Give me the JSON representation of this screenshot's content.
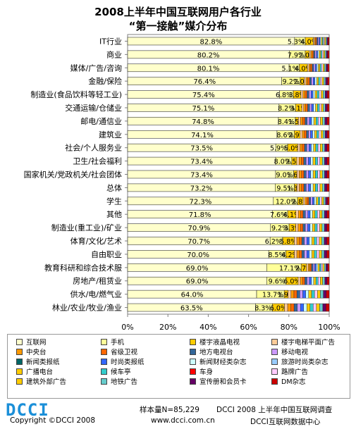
{
  "title_line1": "2008上半年中国互联网用户各行业",
  "title_line2": "“第一接触”媒介分布",
  "chart_data": {
    "type": "bar",
    "orientation": "horizontal",
    "stacked": true,
    "title": "2008上半年中国互联网用户各行业 “第一接触”媒介分布",
    "xlim": [
      0,
      100
    ],
    "x_ticks": [
      "0%",
      "20%",
      "40%",
      "60%",
      "80%",
      "100%"
    ],
    "grid": false,
    "legend_position": "bottom",
    "categories": [
      "IT行业",
      "商业",
      "媒体/广告/咨询",
      "金融/保险",
      "制造业(食品饮料等轻工业)",
      "交通运输/仓储业",
      "邮电/通信业",
      "建筑业",
      "社会/个人服务业",
      "卫生/社会福利",
      "国家机关/党政机关/社会团体",
      "总体",
      "学生",
      "其他",
      "制造业(重工业)/矿业",
      "体育/文化/艺术",
      "自由职业",
      "教育科研和综合技术服",
      "房地产/租赁业",
      "供水/电/燃气业",
      "林业/农业/牧业/渔业"
    ],
    "internet_share": [
      82.8,
      80.2,
      80.1,
      76.4,
      75.4,
      75.1,
      74.8,
      74.1,
      73.5,
      73.4,
      73.4,
      73.2,
      72.3,
      71.8,
      70.9,
      70.7,
      70.0,
      69.0,
      69.0,
      64.0,
      63.5
    ],
    "internet_labels": [
      "82.8%",
      "80.2%",
      "80.1%",
      "76.4%",
      "75.4%",
      "75.1%",
      "74.8%",
      "74.1%",
      "73.5%",
      "73.4%",
      "73.4%",
      "73.2%",
      "72.3%",
      "71.8%",
      "70.9%",
      "70.7%",
      "70.0%",
      "69.0%",
      "69.0%",
      "64.0%",
      "63.5%"
    ],
    "mobile_share": [
      5.3,
      7.9,
      5.1,
      9.2,
      6.8,
      8.2,
      8.4,
      8.6,
      5.9,
      8.0,
      9.0,
      9.5,
      12.0,
      7.6,
      9.2,
      6.2,
      8.5,
      17.1,
      9.6,
      13.7,
      8.3
    ],
    "mobile_labels": [
      "5.3%",
      "7.9%",
      "5.1%",
      "9.2%",
      "6.8%",
      "8.2%",
      "8.4%",
      "8.6%",
      "5.9%",
      "8.0%",
      "9.0%",
      "9.5%",
      "12.0%",
      "7.6%",
      "9.2%",
      "6.2%",
      "8.5%",
      "17.1%",
      "9.6%",
      "13.7%",
      "8.3%"
    ],
    "third_share": [
      4.0,
      2.0,
      4.0,
      2.0,
      3.8,
      3.1,
      1.5,
      2.9,
      5.0,
      2.5,
      1.6,
      1.3,
      2.8,
      4.1,
      3.3,
      5.8,
      4.2,
      2.7,
      6.0,
      1.9,
      6.0
    ],
    "third_labels": [
      "4.0%",
      "2.0%",
      "4.0%",
      "2.0%",
      "3.8%",
      "3.1%",
      "1.5%",
      "2.9%",
      "5.0%",
      "2.5%",
      "1.6%",
      "1.3%",
      "2.8%",
      "4.1%",
      "3.3%",
      "5.8%",
      "4.2%",
      "2.7%",
      "6.0%",
      "1.9%",
      "6.0%"
    ],
    "series": [
      {
        "name": "互联网",
        "color": "#ffffcc"
      },
      {
        "name": "手机",
        "color": "#ffff99"
      },
      {
        "name": "楼宇液晶电视",
        "color": "#ffcc00"
      },
      {
        "name": "楼宇电梯平面广告",
        "color": "#ffcc99"
      },
      {
        "name": "中央台",
        "color": "#ff9900"
      },
      {
        "name": "省级卫视",
        "color": "#ff6600"
      },
      {
        "name": "地方电视台",
        "color": "#336699"
      },
      {
        "name": "移动电视",
        "color": "#cc99ff"
      },
      {
        "name": "新闻类报纸",
        "color": "#006666"
      },
      {
        "name": "时尚类报纸",
        "color": "#3366ff"
      },
      {
        "name": "新闻财经类杂志",
        "color": "#ccffff"
      },
      {
        "name": "旅游时尚类杂志",
        "color": "#99ccff"
      },
      {
        "name": "广播电台",
        "color": "#ffcc00"
      },
      {
        "name": "候车亭",
        "color": "#33cccc"
      },
      {
        "name": "车身",
        "color": "#ff0000"
      },
      {
        "name": "路牌广告",
        "color": "#ffccff"
      },
      {
        "name": "建筑外部广告",
        "color": "#ffcc00"
      },
      {
        "name": "地铁广告",
        "color": "#66cccc"
      },
      {
        "name": "宣传册和会员卡",
        "color": "#660066"
      },
      {
        "name": "DM杂志",
        "color": "#cc0000"
      }
    ]
  },
  "footer": {
    "logo": "DCCI",
    "copyright": "Copyright ©DCCI 2008",
    "sample": "样本量N=85,229",
    "survey": "DCCI 2008 上半年中国互联网调查",
    "website": "www.dcci.com.cn",
    "center": "DCCI互联网数据中心"
  }
}
